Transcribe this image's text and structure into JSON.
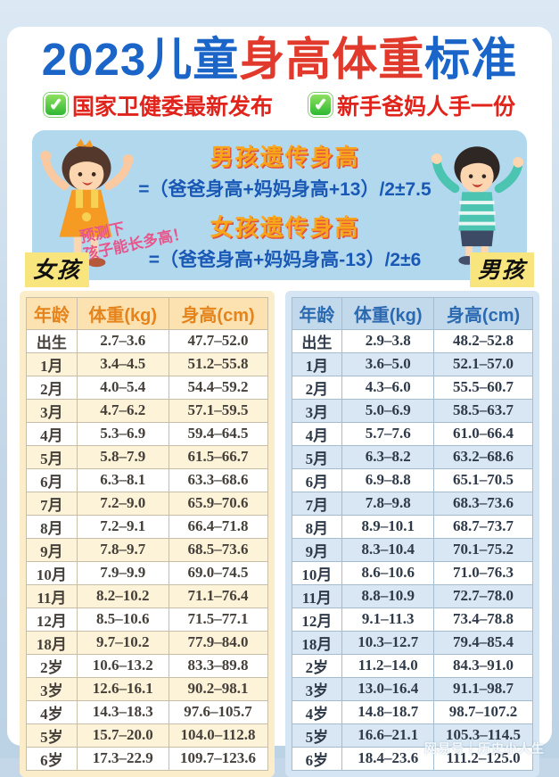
{
  "title": {
    "part1": "2023儿童",
    "part2": "身高体重",
    "part3": "标准"
  },
  "badges": [
    {
      "icon": "check-icon",
      "label": "国家卫健委最新发布"
    },
    {
      "icon": "check-icon",
      "label": "新手爸妈人手一份"
    }
  ],
  "formula_box": {
    "boy_title": "男孩遗传身高",
    "boy_formula": "=（爸爸身高+妈妈身高+13）/2±7.5",
    "note_line1": "预测下",
    "note_line2": "孩子能长多高！",
    "girl_title": "女孩遗传身高",
    "girl_formula": "=（爸爸身高+妈妈身高-13）/2±6",
    "girl_label": "女孩",
    "boy_label": "男孩"
  },
  "tables": {
    "girls": {
      "headers": [
        "年龄",
        "体重(kg)",
        "身高(cm)"
      ],
      "rows": [
        [
          "出生",
          "2.7–3.6",
          "47.7–52.0"
        ],
        [
          "1月",
          "3.4–4.5",
          "51.2–55.8"
        ],
        [
          "2月",
          "4.0–5.4",
          "54.4–59.2"
        ],
        [
          "3月",
          "4.7–6.2",
          "57.1–59.5"
        ],
        [
          "4月",
          "5.3–6.9",
          "59.4–64.5"
        ],
        [
          "5月",
          "5.8–7.9",
          "61.5–66.7"
        ],
        [
          "6月",
          "6.3–8.1",
          "63.3–68.6"
        ],
        [
          "7月",
          "7.2–9.0",
          "65.9–70.6"
        ],
        [
          "8月",
          "7.2–9.1",
          "66.4–71.8"
        ],
        [
          "9月",
          "7.8–9.7",
          "68.5–73.6"
        ],
        [
          "10月",
          "7.9–9.9",
          "69.0–74.5"
        ],
        [
          "11月",
          "8.2–10.2",
          "71.1–76.4"
        ],
        [
          "12月",
          "8.5–10.6",
          "71.5–77.1"
        ],
        [
          "18月",
          "9.7–10.2",
          "77.9–84.0"
        ],
        [
          "2岁",
          "10.6–13.2",
          "83.3–89.8"
        ],
        [
          "3岁",
          "12.6–16.1",
          "90.2–98.1"
        ],
        [
          "4岁",
          "14.3–18.3",
          "97.6–105.7"
        ],
        [
          "5岁",
          "15.7–20.0",
          "104.0–112.8"
        ],
        [
          "6岁",
          "17.3–22.9",
          "109.7–123.6"
        ]
      ]
    },
    "boys": {
      "headers": [
        "年龄",
        "体重(kg)",
        "身高(cm)"
      ],
      "rows": [
        [
          "出生",
          "2.9–3.8",
          "48.2–52.8"
        ],
        [
          "1月",
          "3.6–5.0",
          "52.1–57.0"
        ],
        [
          "2月",
          "4.3–6.0",
          "55.5–60.7"
        ],
        [
          "3月",
          "5.0–6.9",
          "58.5–63.7"
        ],
        [
          "4月",
          "5.7–7.6",
          "61.0–66.4"
        ],
        [
          "5月",
          "6.3–8.2",
          "63.2–68.6"
        ],
        [
          "6月",
          "6.9–8.8",
          "65.1–70.5"
        ],
        [
          "7月",
          "7.8–9.8",
          "68.3–73.6"
        ],
        [
          "8月",
          "8.9–10.1",
          "68.7–73.7"
        ],
        [
          "9月",
          "8.3–10.4",
          "70.1–75.2"
        ],
        [
          "10月",
          "8.6–10.6",
          "71.0–76.3"
        ],
        [
          "11月",
          "8.8–10.9",
          "72.7–78.0"
        ],
        [
          "12月",
          "9.1–11.3",
          "73.4–78.8"
        ],
        [
          "18月",
          "10.3–12.7",
          "79.4–85.4"
        ],
        [
          "2岁",
          "11.2–14.0",
          "84.3–91.0"
        ],
        [
          "3岁",
          "13.0–16.4",
          "91.1–98.7"
        ],
        [
          "4岁",
          "14.8–18.7",
          "98.7–107.2"
        ],
        [
          "5岁",
          "16.6–21.1",
          "105.3–114.5"
        ],
        [
          "6岁",
          "18.4–23.6",
          "111.2–125.0"
        ]
      ]
    }
  },
  "watermark": "网易号｜历史小人生",
  "colors": {
    "title_blue": "#1b64c8",
    "title_red": "#e13a2c",
    "badge_red": "#e0241b",
    "check_green": "#2eb832",
    "formula_panel_blue": "#b2d8ee",
    "formula_title_orange": "#f7a51a",
    "formula_text_blue": "#1a58b6",
    "note_pink": "#e8558b",
    "tag_yellow": "#f8e57d",
    "girls_panel_cream": "#fcedca",
    "girls_header_text": "#e5831c",
    "boys_panel_blue": "#d5e5f3",
    "boys_header_text": "#2b6ab0"
  }
}
